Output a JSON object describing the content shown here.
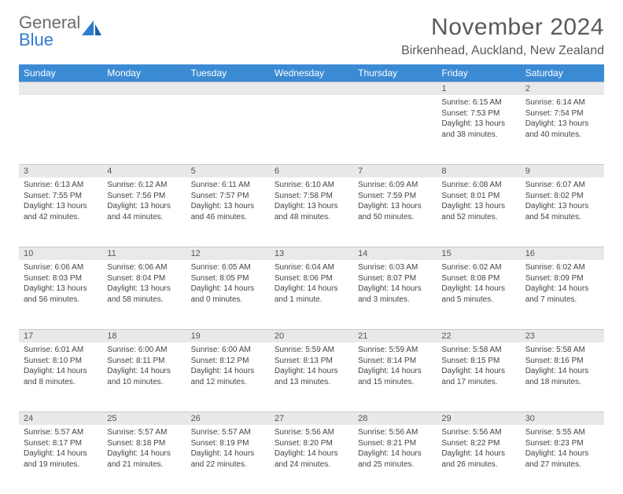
{
  "brand": {
    "word1": "General",
    "word2": "Blue"
  },
  "title": "November 2024",
  "subtitle": "Birkenhead, Auckland, New Zealand",
  "colors": {
    "header_bg": "#3b8bd4",
    "header_text": "#ffffff",
    "daynum_bg": "#e9e9e9",
    "daynum_border": "#c9c9c9",
    "body_text": "#444444",
    "title_text": "#5a5a5a",
    "brand_gray": "#6b6b6b",
    "brand_blue": "#2e7cd1",
    "page_bg": "#ffffff"
  },
  "fonts": {
    "base_family": "Arial",
    "title_size_pt": 22,
    "subtitle_size_pt": 12,
    "cell_size_pt": 7.5
  },
  "daysOfWeek": [
    "Sunday",
    "Monday",
    "Tuesday",
    "Wednesday",
    "Thursday",
    "Friday",
    "Saturday"
  ],
  "weeks": [
    [
      null,
      null,
      null,
      null,
      null,
      {
        "n": "1",
        "sunrise": "Sunrise: 6:15 AM",
        "sunset": "Sunset: 7:53 PM",
        "day1": "Daylight: 13 hours",
        "day2": "and 38 minutes."
      },
      {
        "n": "2",
        "sunrise": "Sunrise: 6:14 AM",
        "sunset": "Sunset: 7:54 PM",
        "day1": "Daylight: 13 hours",
        "day2": "and 40 minutes."
      }
    ],
    [
      {
        "n": "3",
        "sunrise": "Sunrise: 6:13 AM",
        "sunset": "Sunset: 7:55 PM",
        "day1": "Daylight: 13 hours",
        "day2": "and 42 minutes."
      },
      {
        "n": "4",
        "sunrise": "Sunrise: 6:12 AM",
        "sunset": "Sunset: 7:56 PM",
        "day1": "Daylight: 13 hours",
        "day2": "and 44 minutes."
      },
      {
        "n": "5",
        "sunrise": "Sunrise: 6:11 AM",
        "sunset": "Sunset: 7:57 PM",
        "day1": "Daylight: 13 hours",
        "day2": "and 46 minutes."
      },
      {
        "n": "6",
        "sunrise": "Sunrise: 6:10 AM",
        "sunset": "Sunset: 7:58 PM",
        "day1": "Daylight: 13 hours",
        "day2": "and 48 minutes."
      },
      {
        "n": "7",
        "sunrise": "Sunrise: 6:09 AM",
        "sunset": "Sunset: 7:59 PM",
        "day1": "Daylight: 13 hours",
        "day2": "and 50 minutes."
      },
      {
        "n": "8",
        "sunrise": "Sunrise: 6:08 AM",
        "sunset": "Sunset: 8:01 PM",
        "day1": "Daylight: 13 hours",
        "day2": "and 52 minutes."
      },
      {
        "n": "9",
        "sunrise": "Sunrise: 6:07 AM",
        "sunset": "Sunset: 8:02 PM",
        "day1": "Daylight: 13 hours",
        "day2": "and 54 minutes."
      }
    ],
    [
      {
        "n": "10",
        "sunrise": "Sunrise: 6:06 AM",
        "sunset": "Sunset: 8:03 PM",
        "day1": "Daylight: 13 hours",
        "day2": "and 56 minutes."
      },
      {
        "n": "11",
        "sunrise": "Sunrise: 6:06 AM",
        "sunset": "Sunset: 8:04 PM",
        "day1": "Daylight: 13 hours",
        "day2": "and 58 minutes."
      },
      {
        "n": "12",
        "sunrise": "Sunrise: 6:05 AM",
        "sunset": "Sunset: 8:05 PM",
        "day1": "Daylight: 14 hours",
        "day2": "and 0 minutes."
      },
      {
        "n": "13",
        "sunrise": "Sunrise: 6:04 AM",
        "sunset": "Sunset: 8:06 PM",
        "day1": "Daylight: 14 hours",
        "day2": "and 1 minute."
      },
      {
        "n": "14",
        "sunrise": "Sunrise: 6:03 AM",
        "sunset": "Sunset: 8:07 PM",
        "day1": "Daylight: 14 hours",
        "day2": "and 3 minutes."
      },
      {
        "n": "15",
        "sunrise": "Sunrise: 6:02 AM",
        "sunset": "Sunset: 8:08 PM",
        "day1": "Daylight: 14 hours",
        "day2": "and 5 minutes."
      },
      {
        "n": "16",
        "sunrise": "Sunrise: 6:02 AM",
        "sunset": "Sunset: 8:09 PM",
        "day1": "Daylight: 14 hours",
        "day2": "and 7 minutes."
      }
    ],
    [
      {
        "n": "17",
        "sunrise": "Sunrise: 6:01 AM",
        "sunset": "Sunset: 8:10 PM",
        "day1": "Daylight: 14 hours",
        "day2": "and 8 minutes."
      },
      {
        "n": "18",
        "sunrise": "Sunrise: 6:00 AM",
        "sunset": "Sunset: 8:11 PM",
        "day1": "Daylight: 14 hours",
        "day2": "and 10 minutes."
      },
      {
        "n": "19",
        "sunrise": "Sunrise: 6:00 AM",
        "sunset": "Sunset: 8:12 PM",
        "day1": "Daylight: 14 hours",
        "day2": "and 12 minutes."
      },
      {
        "n": "20",
        "sunrise": "Sunrise: 5:59 AM",
        "sunset": "Sunset: 8:13 PM",
        "day1": "Daylight: 14 hours",
        "day2": "and 13 minutes."
      },
      {
        "n": "21",
        "sunrise": "Sunrise: 5:59 AM",
        "sunset": "Sunset: 8:14 PM",
        "day1": "Daylight: 14 hours",
        "day2": "and 15 minutes."
      },
      {
        "n": "22",
        "sunrise": "Sunrise: 5:58 AM",
        "sunset": "Sunset: 8:15 PM",
        "day1": "Daylight: 14 hours",
        "day2": "and 17 minutes."
      },
      {
        "n": "23",
        "sunrise": "Sunrise: 5:58 AM",
        "sunset": "Sunset: 8:16 PM",
        "day1": "Daylight: 14 hours",
        "day2": "and 18 minutes."
      }
    ],
    [
      {
        "n": "24",
        "sunrise": "Sunrise: 5:57 AM",
        "sunset": "Sunset: 8:17 PM",
        "day1": "Daylight: 14 hours",
        "day2": "and 19 minutes."
      },
      {
        "n": "25",
        "sunrise": "Sunrise: 5:57 AM",
        "sunset": "Sunset: 8:18 PM",
        "day1": "Daylight: 14 hours",
        "day2": "and 21 minutes."
      },
      {
        "n": "26",
        "sunrise": "Sunrise: 5:57 AM",
        "sunset": "Sunset: 8:19 PM",
        "day1": "Daylight: 14 hours",
        "day2": "and 22 minutes."
      },
      {
        "n": "27",
        "sunrise": "Sunrise: 5:56 AM",
        "sunset": "Sunset: 8:20 PM",
        "day1": "Daylight: 14 hours",
        "day2": "and 24 minutes."
      },
      {
        "n": "28",
        "sunrise": "Sunrise: 5:56 AM",
        "sunset": "Sunset: 8:21 PM",
        "day1": "Daylight: 14 hours",
        "day2": "and 25 minutes."
      },
      {
        "n": "29",
        "sunrise": "Sunrise: 5:56 AM",
        "sunset": "Sunset: 8:22 PM",
        "day1": "Daylight: 14 hours",
        "day2": "and 26 minutes."
      },
      {
        "n": "30",
        "sunrise": "Sunrise: 5:55 AM",
        "sunset": "Sunset: 8:23 PM",
        "day1": "Daylight: 14 hours",
        "day2": "and 27 minutes."
      }
    ]
  ]
}
